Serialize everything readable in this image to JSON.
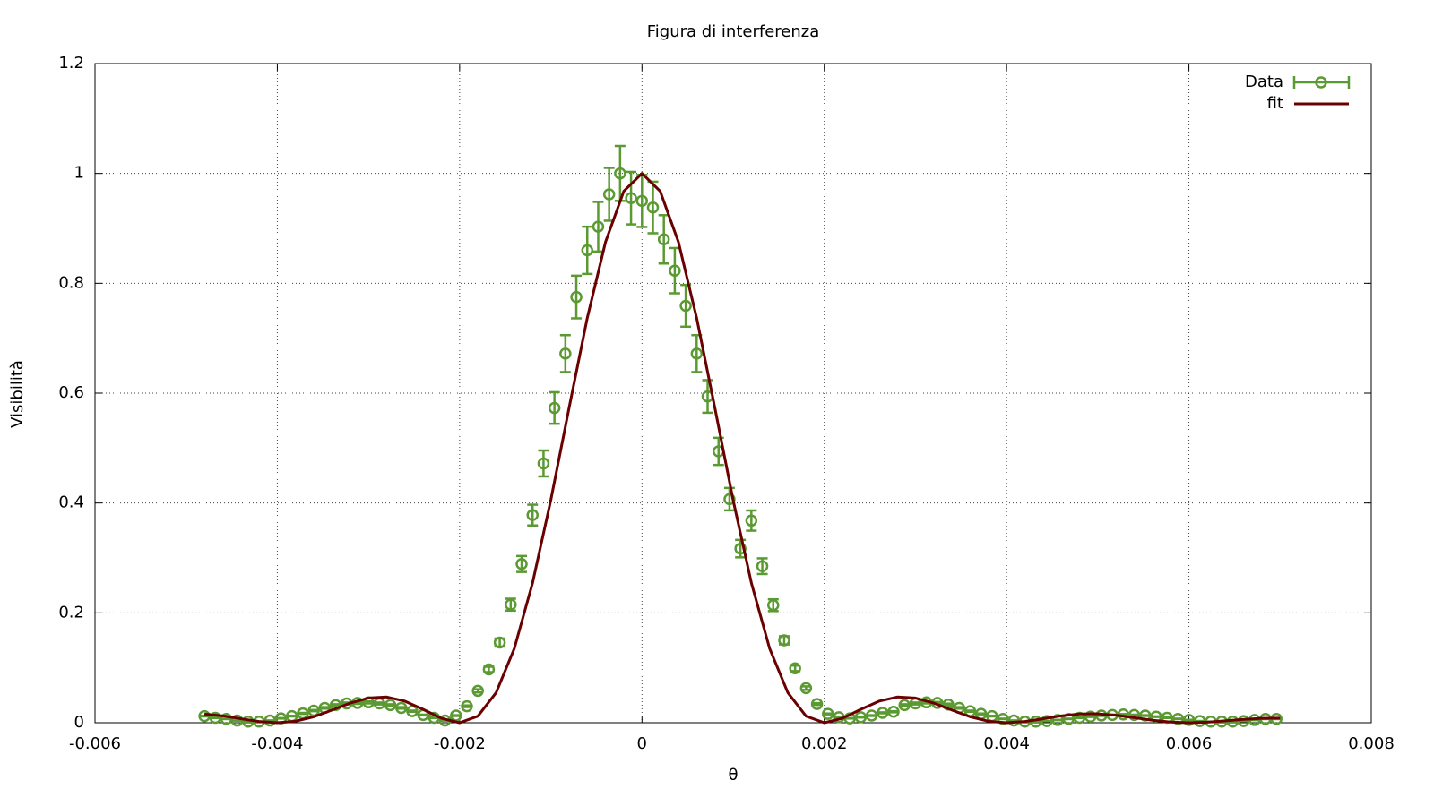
{
  "chart_data": {
    "type": "errorbar_line",
    "title": "Figura di interferenza",
    "xlabel": "θ",
    "ylabel": "Visibilità",
    "xlim": [
      -0.006,
      0.008
    ],
    "ylim": [
      0,
      1.2
    ],
    "xticks": [
      -0.006,
      -0.004,
      -0.002,
      0,
      0.002,
      0.004,
      0.006,
      0.008
    ],
    "yticks": [
      0,
      0.2,
      0.4,
      0.6,
      0.8,
      1,
      1.2
    ],
    "grid": true,
    "legend": "upper right",
    "series": [
      {
        "name": "Data",
        "color": "#5b9a32",
        "style": "points",
        "x": [
          -0.0048,
          -0.00468,
          -0.00456,
          -0.00444,
          -0.00432,
          -0.0042,
          -0.00408,
          -0.00396,
          -0.00384,
          -0.00372,
          -0.0036,
          -0.00348,
          -0.00336,
          -0.00324,
          -0.00312,
          -0.003,
          -0.00288,
          -0.00276,
          -0.00264,
          -0.00252,
          -0.0024,
          -0.00228,
          -0.00216,
          -0.00204,
          -0.00192,
          -0.0018,
          -0.00168,
          -0.00156,
          -0.00144,
          -0.00132,
          -0.0012,
          -0.00108,
          -0.00096,
          -0.00084,
          -0.00072,
          -0.0006,
          -0.00048,
          -0.00036,
          -0.00024,
          -0.00012,
          0,
          0.00012,
          0.00024,
          0.00036,
          0.00048,
          0.0006,
          0.00072,
          0.00084,
          0.00096,
          0.00108,
          0.0012,
          0.00132,
          0.00144,
          0.00156,
          0.00168,
          0.0018,
          0.00192,
          0.00204,
          0.00216,
          0.00228,
          0.0024,
          0.00252,
          0.00264,
          0.00276,
          0.00288,
          0.003,
          0.00312,
          0.00324,
          0.00336,
          0.00348,
          0.0036,
          0.00372,
          0.00384,
          0.00396,
          0.00408,
          0.0042,
          0.00432,
          0.00444,
          0.00456,
          0.00468,
          0.0048,
          0.00492,
          0.00504,
          0.00516,
          0.00528,
          0.0054,
          0.00552,
          0.00564,
          0.00576,
          0.00588,
          0.006,
          0.00612,
          0.00624,
          0.00636,
          0.00648,
          0.0066,
          0.00672,
          0.00684,
          0.00696
        ],
        "values": [
          0.012,
          0.009,
          0.007,
          0.004,
          0.002,
          0.002,
          0.004,
          0.008,
          0.012,
          0.017,
          0.022,
          0.027,
          0.032,
          0.035,
          0.036,
          0.037,
          0.035,
          0.032,
          0.027,
          0.021,
          0.014,
          0.009,
          0.004,
          0.013,
          0.03,
          0.058,
          0.097,
          0.146,
          0.215,
          0.289,
          0.378,
          0.472,
          0.573,
          0.672,
          0.775,
          0.86,
          0.903,
          0.962,
          1.0,
          0.955,
          0.95,
          0.938,
          0.88,
          0.823,
          0.759,
          0.672,
          0.594,
          0.494,
          0.407,
          0.317,
          0.368,
          0.285,
          0.214,
          0.15,
          0.099,
          0.063,
          0.034,
          0.016,
          0.01,
          0.008,
          0.01,
          0.013,
          0.018,
          0.02,
          0.032,
          0.035,
          0.037,
          0.036,
          0.033,
          0.027,
          0.021,
          0.016,
          0.012,
          0.007,
          0.004,
          0.002,
          0.002,
          0.003,
          0.005,
          0.007,
          0.009,
          0.011,
          0.013,
          0.014,
          0.015,
          0.014,
          0.013,
          0.011,
          0.009,
          0.007,
          0.005,
          0.003,
          0.002,
          0.002,
          0.002,
          0.003,
          0.005,
          0.007,
          0.007
        ],
        "errors": [
          0.0006,
          0.0005,
          0.0004,
          0.0002,
          0.0001,
          0.0001,
          0.0002,
          0.0004,
          0.0006,
          0.0009,
          0.0011,
          0.0014,
          0.0016,
          0.0018,
          0.0018,
          0.0019,
          0.0018,
          0.0016,
          0.0014,
          0.0011,
          0.0007,
          0.0005,
          0.0002,
          0.0007,
          0.0015,
          0.0029,
          0.0049,
          0.0073,
          0.0108,
          0.0145,
          0.0189,
          0.0236,
          0.0287,
          0.0336,
          0.0388,
          0.043,
          0.0452,
          0.0481,
          0.05,
          0.0478,
          0.0475,
          0.0469,
          0.044,
          0.0412,
          0.038,
          0.0336,
          0.0297,
          0.0247,
          0.0204,
          0.0159,
          0.0184,
          0.0143,
          0.0107,
          0.0075,
          0.005,
          0.0032,
          0.0017,
          0.0008,
          0.0005,
          0.0004,
          0.0005,
          0.0007,
          0.0009,
          0.001,
          0.0016,
          0.0018,
          0.0019,
          0.0018,
          0.0017,
          0.0014,
          0.0011,
          0.0008,
          0.0006,
          0.0004,
          0.0002,
          0.0001,
          0.0001,
          0.0002,
          0.0003,
          0.0004,
          0.0005,
          0.0006,
          0.0007,
          0.0007,
          0.0008,
          0.0007,
          0.0007,
          0.0006,
          0.0005,
          0.0004,
          0.0003,
          0.0002,
          0.0001,
          0.0001,
          0.0001,
          0.0002,
          0.0003,
          0.0004,
          0.0004
        ]
      },
      {
        "name": "fit",
        "color": "#6b0000",
        "style": "line",
        "x": [
          -0.0048,
          -0.0046,
          -0.0044,
          -0.0042,
          -0.004,
          -0.0038,
          -0.0036,
          -0.0034,
          -0.0032,
          -0.003,
          -0.0028,
          -0.0026,
          -0.0024,
          -0.0022,
          -0.002,
          -0.0018,
          -0.0016,
          -0.0014,
          -0.0012,
          -0.001,
          -0.0008,
          -0.0006,
          -0.0004,
          -0.0002,
          0,
          0.0002,
          0.0004,
          0.0006,
          0.0008,
          0.001,
          0.0012,
          0.0014,
          0.0016,
          0.0018,
          0.002,
          0.0022,
          0.0024,
          0.0026,
          0.0028,
          0.003,
          0.0032,
          0.0034,
          0.0036,
          0.0038,
          0.004,
          0.0042,
          0.0044,
          0.0046,
          0.0048,
          0.005,
          0.0052,
          0.0054,
          0.0056,
          0.0058,
          0.006,
          0.0062,
          0.0064,
          0.0066,
          0.0068,
          0.007
        ],
        "values": [
          0.0159,
          0.0125,
          0.0072,
          0.0022,
          0,
          0.0027,
          0.0108,
          0.023,
          0.0358,
          0.045,
          0.0468,
          0.0392,
          0.0243,
          0.008,
          0,
          0.0119,
          0.0547,
          0.1353,
          0.2546,
          0.4053,
          0.5728,
          0.7368,
          0.8751,
          0.9675,
          1,
          0.9675,
          0.8751,
          0.7368,
          0.5728,
          0.4053,
          0.2546,
          0.1353,
          0.0547,
          0.0119,
          0,
          0.008,
          0.0243,
          0.0392,
          0.0468,
          0.045,
          0.0358,
          0.023,
          0.0108,
          0.0027,
          0,
          0.0022,
          0.0072,
          0.0125,
          0.0159,
          0.0162,
          0.0136,
          0.0091,
          0.0045,
          0.0012,
          0,
          0.001,
          0.0034,
          0.0061,
          0.0079,
          0.0083
        ]
      }
    ]
  }
}
